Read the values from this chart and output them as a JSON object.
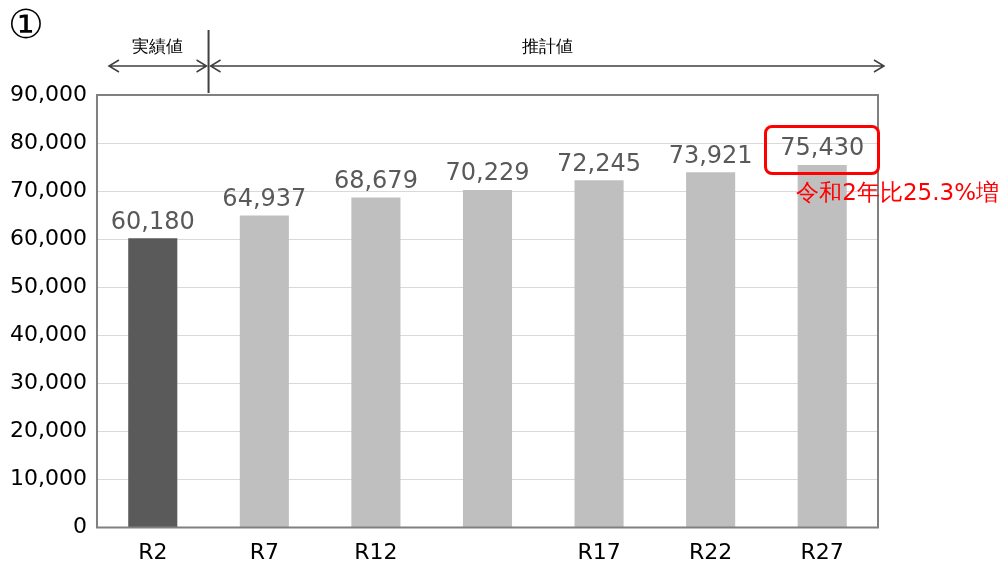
{
  "chart_data": {
    "type": "bar",
    "title": "①",
    "categories": [
      "R2",
      "R7",
      "R12",
      null,
      "R17",
      "R22",
      "R27"
    ],
    "values": [
      60180,
      64937,
      68679,
      70229,
      72245,
      73921,
      75430
    ],
    "colors": [
      "#5a5a5a",
      "#bfbfbf",
      "#bfbfbf",
      "#bfbfbf",
      "#bfbfbf",
      "#bfbfbf",
      "#bfbfbf"
    ],
    "value_labels": [
      "60,180",
      "64,937",
      "68,679",
      "70,229",
      "72,245",
      "73,921",
      "75,430"
    ],
    "ylim": [
      0,
      90000
    ],
    "yticks": [
      0,
      {
        "value": 10000,
        "label": "10,000"
      },
      {
        "value": 20000,
        "label": "20,000"
      },
      {
        "value": 30000,
        "label": "30,000"
      },
      {
        "value": 40000,
        "label": "40,000"
      },
      {
        "value": 50000,
        "label": "50,000"
      },
      {
        "value": 60000,
        "label": "60,000"
      },
      {
        "value": 70000,
        "label": "70,000"
      },
      {
        "value": 80000,
        "label": "80,000"
      },
      {
        "value": 90000,
        "label": "90,000"
      }
    ],
    "grid": "y",
    "legend": false,
    "annotations": [
      "実績値",
      "推計値",
      {
        "text": "令和2年比25.3%増",
        "x": "R27",
        "y": 75430
      }
    ]
  }
}
